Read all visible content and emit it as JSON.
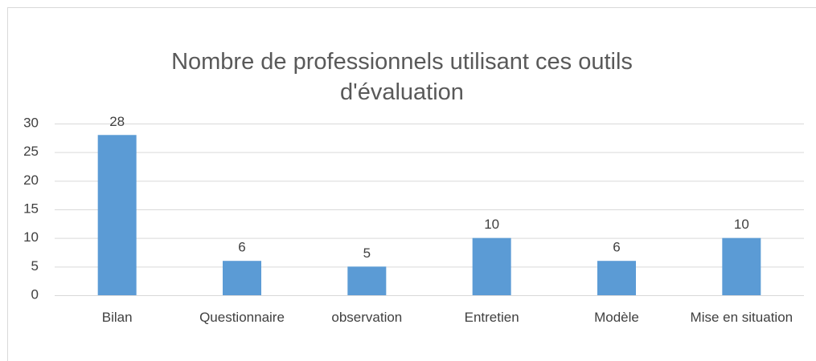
{
  "chart_data": {
    "type": "bar",
    "title": "Nombre de professionnels utilisant ces outils d'évaluation",
    "categories": [
      "Bilan",
      "Questionnaire",
      "observation",
      "Entretien",
      "Modèle",
      "Mise en situation"
    ],
    "values": [
      28,
      6,
      5,
      10,
      6,
      10
    ],
    "color": "#5b9bd5",
    "ylim": [
      0,
      30
    ],
    "yticks": [
      0,
      5,
      10,
      15,
      20,
      25,
      30
    ],
    "grid": true
  }
}
